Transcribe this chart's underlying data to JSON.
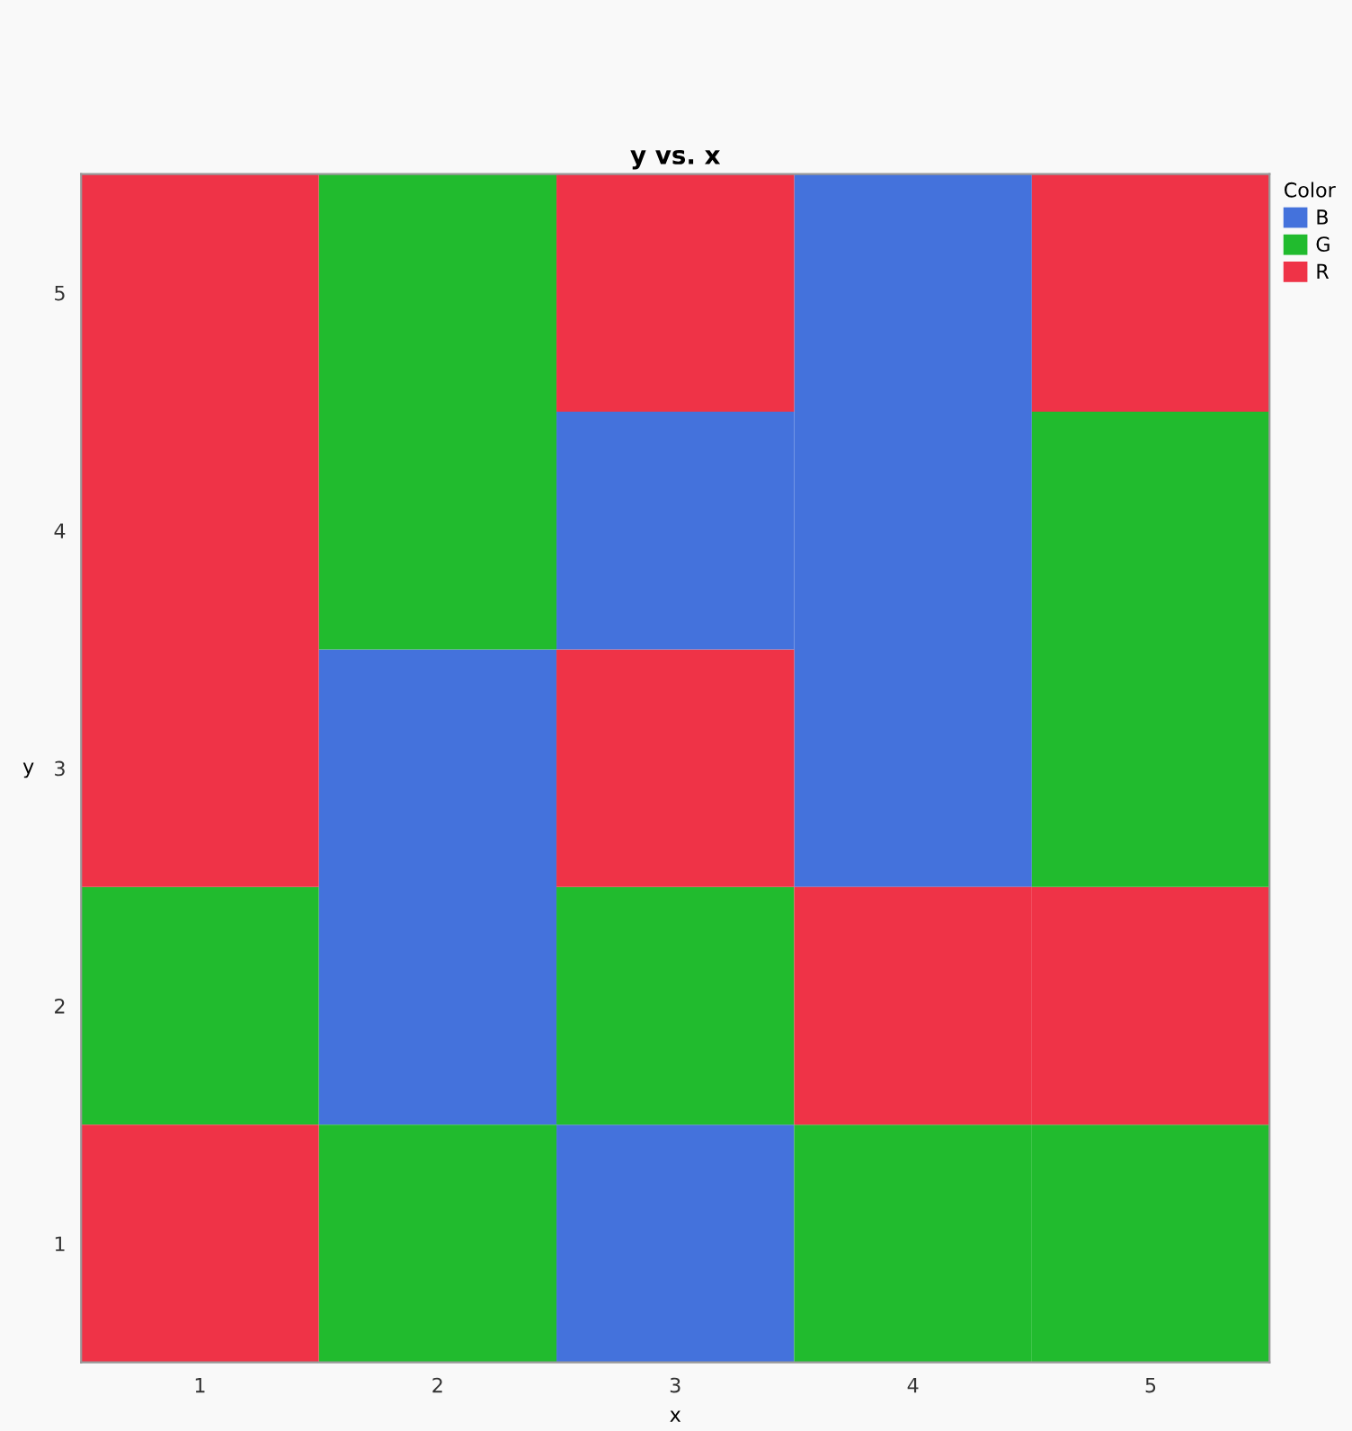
{
  "chart_data": {
    "type": "bar",
    "title": "y vs. x",
    "xlabel": "x",
    "ylabel": "y",
    "legend_title": "Color",
    "categories": [
      "1",
      "2",
      "3",
      "4",
      "5"
    ],
    "series": [
      {
        "name": "B",
        "color": "#4472dc",
        "values": [
          null,
          2,
          1,
          3,
          null
        ],
        "base": [
          null,
          1.5,
          0.5,
          2.5,
          null
        ]
      },
      {
        "name": "G",
        "color": "#21bb2e",
        "values": [
          1,
          1,
          1,
          1,
          1
        ],
        "base": [
          1.5,
          0.5,
          1.5,
          0.5,
          0.5
        ]
      },
      {
        "name": "R",
        "color": "#ef3347",
        "values": [
          1,
          null,
          1,
          1,
          1
        ],
        "base": [
          0.5,
          null,
          2.5,
          1.5,
          1.5
        ]
      },
      {
        "color": "#4472dc",
        "values": [
          null,
          null,
          1,
          null,
          null
        ],
        "base": [
          null,
          null,
          3.5,
          null,
          null
        ]
      },
      {
        "color": "#21bb2e",
        "values": [
          null,
          2,
          null,
          null,
          2
        ],
        "base": [
          null,
          3.5,
          null,
          null,
          2.5
        ]
      },
      {
        "color": "#ef3347",
        "values": [
          3,
          null,
          1,
          null,
          1
        ],
        "base": [
          2.5,
          null,
          4.5,
          null,
          4.5
        ]
      }
    ],
    "ylim": [
      0.5,
      5.5
    ],
    "yticks": [
      1,
      2,
      3,
      4,
      5
    ],
    "legend": "top right",
    "grid": false
  }
}
